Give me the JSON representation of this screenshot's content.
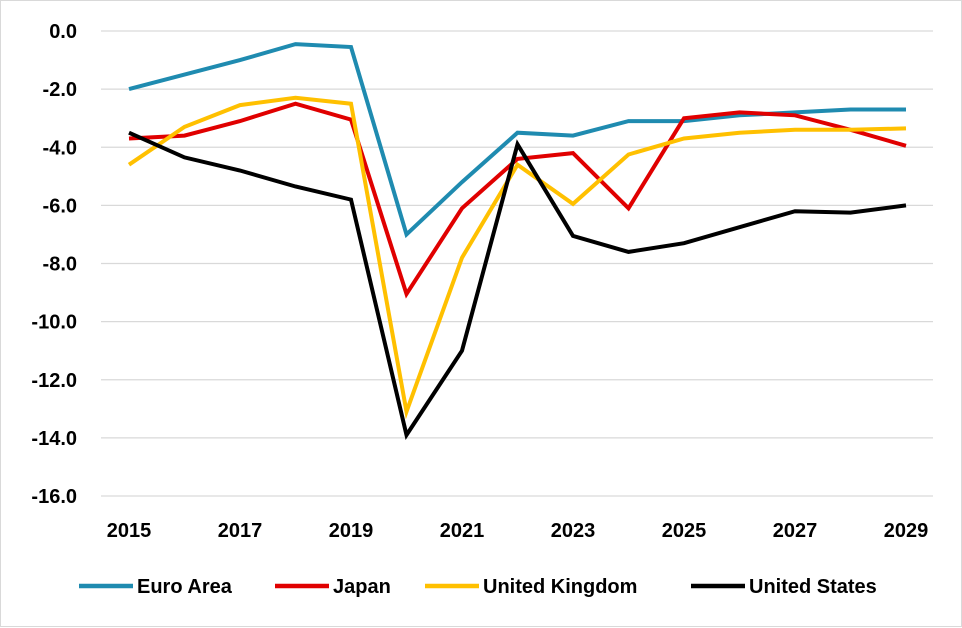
{
  "chart_data": {
    "type": "line",
    "title": "",
    "xlabel": "",
    "ylabel": "",
    "x": [
      2015,
      2016,
      2017,
      2018,
      2019,
      2020,
      2021,
      2022,
      2023,
      2024,
      2025,
      2026,
      2027,
      2028,
      2029
    ],
    "xlim": [
      2015,
      2029
    ],
    "ylim": [
      -16,
      0
    ],
    "x_ticks": [
      2015,
      2017,
      2019,
      2021,
      2023,
      2025,
      2027,
      2029
    ],
    "x_tick_labels": [
      "2015",
      "2017",
      "2019",
      "2021",
      "2023",
      "2025",
      "2027",
      "2029"
    ],
    "y_ticks": [
      0,
      -2,
      -4,
      -6,
      -8,
      -10,
      -12,
      -14,
      -16
    ],
    "y_tick_labels": [
      "0.0",
      "-2.0",
      "-4.0",
      "-6.0",
      "-8.0",
      "-10.0",
      "-12.0",
      "-14.0",
      "-16.0"
    ],
    "grid": "horizontal",
    "legend_position": "bottom",
    "series": [
      {
        "name": "Euro Area",
        "color": "#1f8bb0",
        "values": [
          -2.0,
          -1.5,
          -1.0,
          -0.45,
          -0.55,
          -7.0,
          -5.2,
          -3.5,
          -3.6,
          -3.1,
          -3.1,
          -2.9,
          -2.8,
          -2.7,
          -2.7
        ]
      },
      {
        "name": "Japan",
        "color": "#e00000",
        "values": [
          -3.7,
          -3.6,
          -3.1,
          -2.5,
          -3.05,
          -9.05,
          -6.1,
          -4.4,
          -4.2,
          -6.1,
          -3.0,
          -2.8,
          -2.9,
          -3.4,
          -3.95
        ]
      },
      {
        "name": "United Kingdom",
        "color": "#ffc000",
        "values": [
          -4.6,
          -3.3,
          -2.55,
          -2.3,
          -2.5,
          -13.1,
          -7.8,
          -4.6,
          -5.95,
          -4.25,
          -3.7,
          -3.5,
          -3.4,
          -3.4,
          -3.35
        ]
      },
      {
        "name": "United States",
        "color": "#000000",
        "values": [
          -3.5,
          -4.35,
          -4.8,
          -5.35,
          -5.8,
          -13.9,
          -11.0,
          -3.9,
          -7.05,
          -7.6,
          -7.3,
          -6.75,
          -6.2,
          -6.25,
          -6.0
        ]
      }
    ]
  }
}
